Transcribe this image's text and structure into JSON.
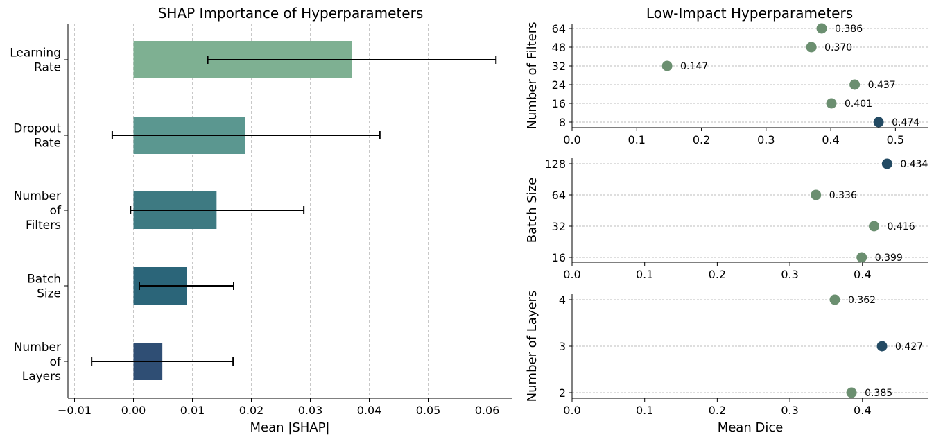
{
  "chart_data": [
    {
      "type": "bar",
      "orientation": "horizontal",
      "title": "SHAP Importance of Hyperparameters",
      "xlabel": "Mean |SHAP|",
      "ylabel": "",
      "xlim": [
        -0.011,
        0.065
      ],
      "xticks": [
        "−0.01",
        "0.00",
        "0.01",
        "0.02",
        "0.03",
        "0.04",
        "0.05",
        "0.06"
      ],
      "xtick_values": [
        -0.01,
        0,
        0.01,
        0.02,
        0.03,
        0.04,
        0.05,
        0.06
      ],
      "grid": "vertical dashed",
      "categories": [
        [
          "Learning",
          "Rate"
        ],
        [
          "Dropout",
          "Rate"
        ],
        [
          "Number",
          "of",
          "Filters"
        ],
        [
          "Batch",
          "Size"
        ],
        [
          "Number",
          "of",
          "Layers"
        ]
      ],
      "values": [
        0.037,
        0.019,
        0.0141,
        0.009,
        0.0049
      ],
      "error_low": [
        0.0126,
        -0.0036,
        -0.0005,
        0.001,
        -0.0071
      ],
      "error_high": [
        0.0615,
        0.0418,
        0.0289,
        0.017,
        0.0169
      ],
      "colors": [
        "#7eb092",
        "#5b9790",
        "#3e7a82",
        "#2b6579",
        "#2f4e74"
      ]
    },
    {
      "type": "scatter",
      "title": "Low-Impact Hyperparameters",
      "ylabel": "Number of Filters",
      "xlabel": "",
      "xlim": [
        0.0,
        0.55
      ],
      "xticks": [
        "0.0",
        "0.1",
        "0.2",
        "0.3",
        "0.4",
        "0.5"
      ],
      "xtick_values": [
        0,
        0.1,
        0.2,
        0.3,
        0.4,
        0.5
      ],
      "categories": [
        "8",
        "16",
        "24",
        "32",
        "48",
        "64"
      ],
      "values": [
        0.474,
        0.401,
        0.437,
        0.147,
        0.37,
        0.386
      ],
      "labels": [
        "0.474",
        "0.401",
        "0.437",
        "0.147",
        "0.370",
        "0.386"
      ],
      "highlight_index": 0,
      "colors": {
        "point": "#6b8f70",
        "highlight": "#234a63"
      }
    },
    {
      "type": "scatter",
      "ylabel": "Batch Size",
      "xlabel": "",
      "xlim": [
        0.0,
        0.49
      ],
      "xticks": [
        "0.0",
        "0.1",
        "0.2",
        "0.3",
        "0.4"
      ],
      "xtick_values": [
        0,
        0.1,
        0.2,
        0.3,
        0.4
      ],
      "categories": [
        "16",
        "32",
        "64",
        "128"
      ],
      "values": [
        0.399,
        0.416,
        0.336,
        0.434
      ],
      "labels": [
        "0.399",
        "0.416",
        "0.336",
        "0.434"
      ],
      "highlight_index": 3,
      "colors": {
        "point": "#6b8f70",
        "highlight": "#234a63"
      }
    },
    {
      "type": "scatter",
      "ylabel": "Number of Layers",
      "xlabel": "Mean Dice",
      "xlim": [
        0.0,
        0.49
      ],
      "xticks": [
        "0.0",
        "0.1",
        "0.2",
        "0.3",
        "0.4"
      ],
      "xtick_values": [
        0,
        0.1,
        0.2,
        0.3,
        0.4
      ],
      "categories": [
        "2",
        "3",
        "4"
      ],
      "values": [
        0.385,
        0.427,
        0.362
      ],
      "labels": [
        "0.385",
        "0.427",
        "0.362"
      ],
      "highlight_index": 1,
      "colors": {
        "point": "#6b8f70",
        "highlight": "#234a63"
      }
    }
  ]
}
